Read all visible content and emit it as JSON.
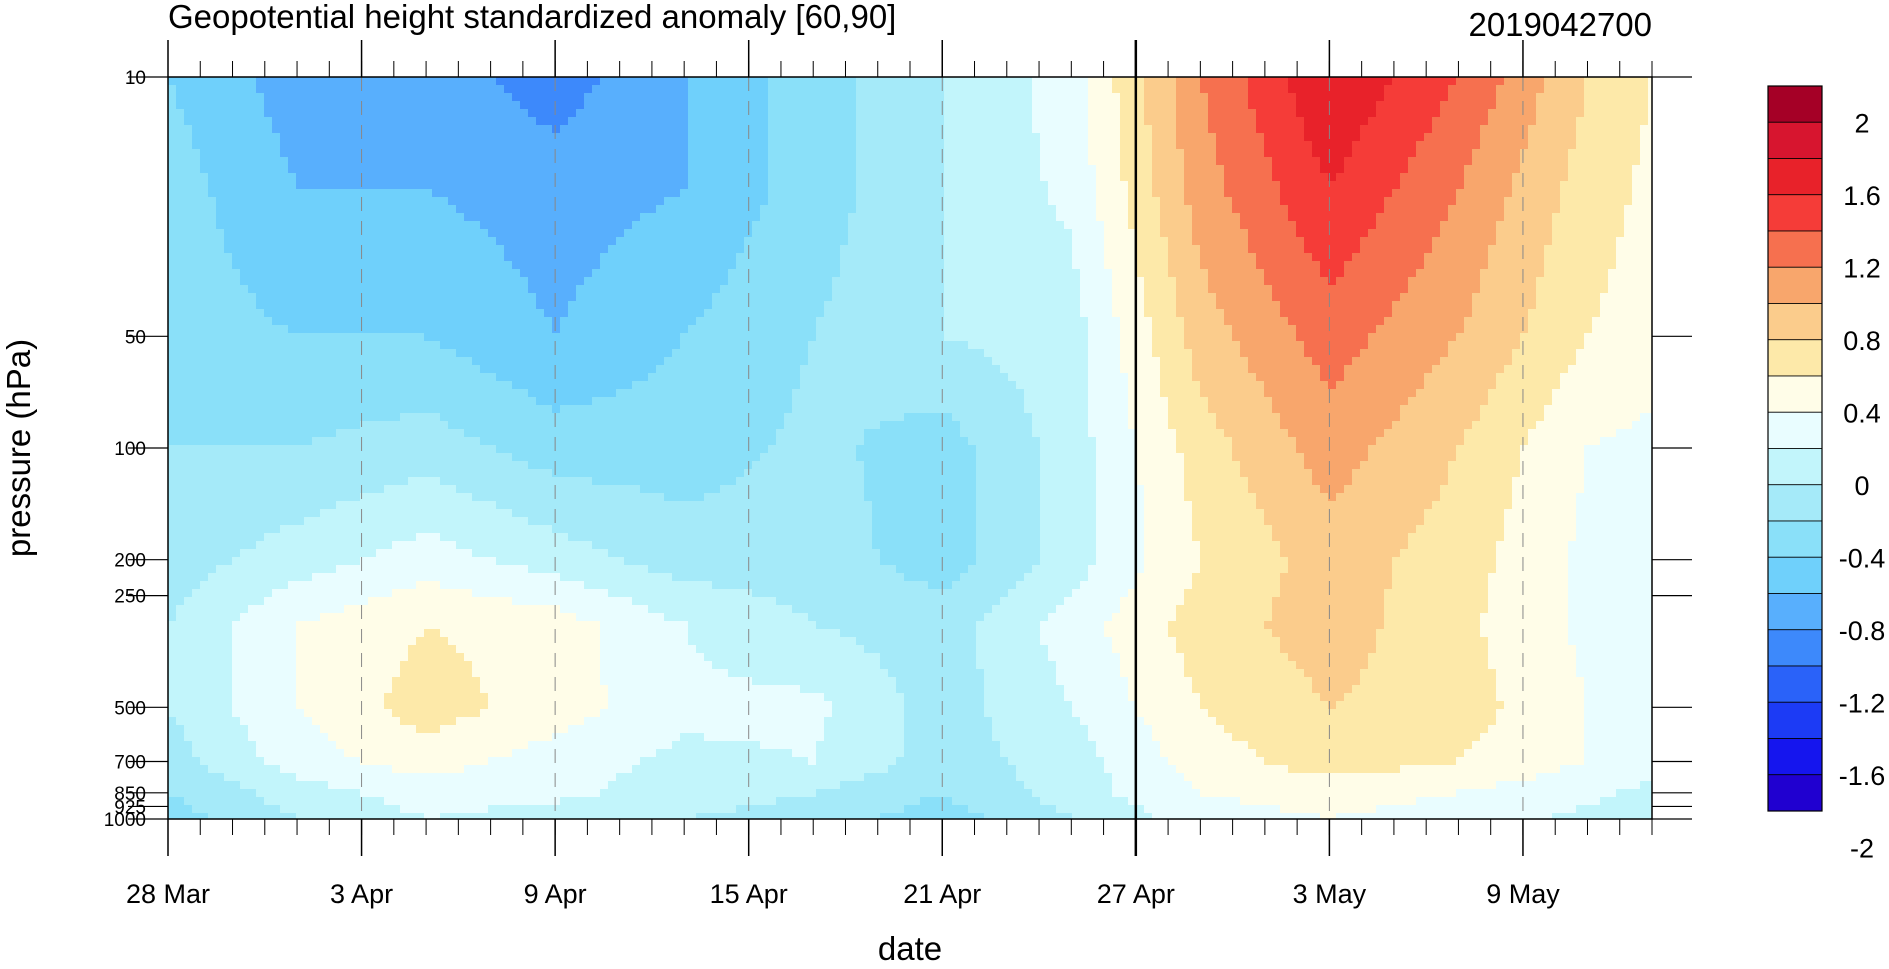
{
  "chart_data": {
    "type": "heatmap",
    "title": "Geopotential height standardized anomaly [60,90]",
    "subtitle": "2019042700",
    "xlabel": "date",
    "ylabel": "pressure (hPa)",
    "y_scale": "log",
    "y_reversed": true,
    "ylim": [
      1000,
      10
    ],
    "yticks": [
      {
        "value": 10,
        "label": "10"
      },
      {
        "value": 50,
        "label": "50"
      },
      {
        "value": 100,
        "label": "100"
      },
      {
        "value": 200,
        "label": "200"
      },
      {
        "value": 250,
        "label": "250"
      },
      {
        "value": 500,
        "label": "500"
      },
      {
        "value": 700,
        "label": "700"
      },
      {
        "value": 850,
        "label": "850"
      },
      {
        "value": 925,
        "label": "925"
      },
      {
        "value": 1000,
        "label": "1000"
      }
    ],
    "xlim": [
      "2019-03-28",
      "2019-05-13"
    ],
    "xticks": [
      {
        "value": "2019-03-28",
        "label": "28 Mar"
      },
      {
        "value": "2019-04-03",
        "label": "3 Apr"
      },
      {
        "value": "2019-04-09",
        "label": "9 Apr"
      },
      {
        "value": "2019-04-15",
        "label": "15 Apr"
      },
      {
        "value": "2019-04-21",
        "label": "21 Apr"
      },
      {
        "value": "2019-04-27",
        "label": "27 Apr"
      },
      {
        "value": "2019-05-03",
        "label": "3 May"
      },
      {
        "value": "2019-05-09",
        "label": "9 May"
      }
    ],
    "reference_line": "2019-04-27",
    "colorbar": {
      "labels": [
        "2",
        "1.6",
        "1.2",
        "0.8",
        "0.4",
        "0",
        "-0.4",
        "-0.8",
        "-1.2",
        "-1.6",
        "-2"
      ],
      "colors": [
        "#a50026",
        "#d7152f",
        "#e8222a",
        "#f53c38",
        "#f6704f",
        "#f8a66c",
        "#fbcc8c",
        "#fde9a9",
        "#fffde8",
        "#e9fdff",
        "#c2f5fb",
        "#a5eaf9",
        "#8ae0f9",
        "#6fd0fb",
        "#58affd",
        "#3d89fb",
        "#2a62f9",
        "#1c3bf5",
        "#1515ee",
        "#2000d0"
      ]
    },
    "x_dates": [
      "2019-03-28",
      "2019-04-01",
      "2019-04-05",
      "2019-04-09",
      "2019-04-13",
      "2019-04-17",
      "2019-04-21",
      "2019-04-25",
      "2019-04-29",
      "2019-05-03",
      "2019-05-07",
      "2019-05-11",
      "2019-05-13"
    ],
    "y_levels": [
      10,
      20,
      50,
      100,
      200,
      300,
      500,
      700,
      850,
      1000
    ],
    "z": [
      [
        -0.6,
        -0.9,
        -0.9,
        -1.1,
        -0.8,
        -0.5,
        -0.2,
        0.1,
        1.0,
        1.6,
        1.2,
        0.6,
        0.4
      ],
      [
        -0.5,
        -0.8,
        -0.8,
        -0.9,
        -0.8,
        -0.5,
        -0.2,
        0.05,
        0.9,
        1.4,
        1.0,
        0.5,
        0.35
      ],
      [
        -0.5,
        -0.6,
        -0.6,
        -0.8,
        -0.6,
        -0.4,
        -0.2,
        -0.1,
        0.7,
        1.1,
        0.8,
        0.4,
        0.3
      ],
      [
        -0.4,
        -0.4,
        -0.3,
        -0.5,
        -0.5,
        -0.35,
        -0.5,
        -0.1,
        0.5,
        0.9,
        0.6,
        0.2,
        0.15
      ],
      [
        -0.3,
        -0.1,
        0.1,
        -0.1,
        -0.3,
        -0.3,
        -0.5,
        -0.1,
        0.4,
        0.7,
        0.5,
        0.15,
        0.1
      ],
      [
        -0.2,
        0.2,
        0.4,
        0.3,
        0.0,
        -0.2,
        -0.3,
        0.1,
        0.5,
        0.7,
        0.45,
        0.15,
        0.1
      ],
      [
        -0.2,
        0.2,
        0.5,
        0.3,
        0.05,
        0.05,
        -0.3,
        0.0,
        0.4,
        0.6,
        0.5,
        0.2,
        0.1
      ],
      [
        -0.3,
        0.1,
        0.3,
        0.1,
        -0.05,
        0.0,
        -0.3,
        -0.1,
        0.3,
        0.5,
        0.4,
        0.2,
        0.1
      ],
      [
        -0.4,
        -0.1,
        0.1,
        0.05,
        -0.1,
        -0.2,
        -0.4,
        -0.1,
        0.2,
        0.3,
        0.2,
        0.05,
        -0.05
      ],
      [
        -0.5,
        -0.2,
        0.0,
        -0.1,
        -0.2,
        -0.3,
        -0.5,
        -0.2,
        0.1,
        0.2,
        0.1,
        -0.05,
        -0.1
      ]
    ]
  }
}
